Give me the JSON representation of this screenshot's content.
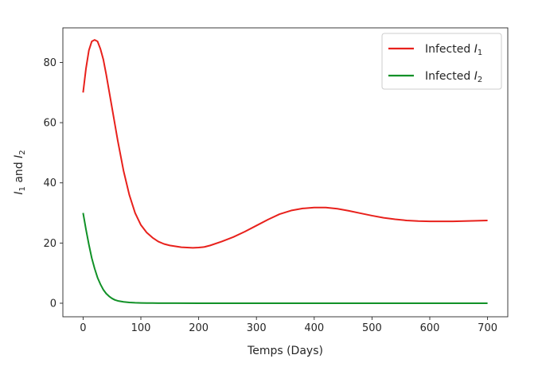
{
  "chart_data": {
    "type": "line",
    "title": "",
    "xlabel": "Temps (Days)",
    "ylabel_parts": [
      {
        "text": "I",
        "italic": true
      },
      {
        "text": "1",
        "sub": true
      },
      {
        "text": " and "
      },
      {
        "text": "I",
        "italic": true
      },
      {
        "text": "2",
        "sub": true
      }
    ],
    "xlim": [
      -35,
      735
    ],
    "ylim": [
      -4.5,
      91.5
    ],
    "xticks": [
      0,
      100,
      200,
      300,
      400,
      500,
      600,
      700
    ],
    "yticks": [
      0,
      20,
      40,
      60,
      80
    ],
    "grid": false,
    "legend_position": "top-right",
    "series": [
      {
        "legend_parts": [
          {
            "text": "Infected "
          },
          {
            "text": "I",
            "italic": true
          },
          {
            "text": "1",
            "sub": true
          }
        ],
        "color": "#e8211c",
        "x": [
          0,
          5,
          10,
          15,
          20,
          25,
          30,
          35,
          40,
          50,
          60,
          70,
          80,
          90,
          100,
          110,
          120,
          130,
          140,
          150,
          160,
          170,
          180,
          190,
          200,
          210,
          220,
          240,
          260,
          280,
          300,
          320,
          340,
          360,
          380,
          400,
          420,
          440,
          460,
          480,
          500,
          520,
          540,
          560,
          580,
          600,
          620,
          640,
          660,
          680,
          700
        ],
        "y": [
          70,
          78,
          84,
          87,
          87.5,
          87,
          84.5,
          81,
          76,
          65,
          54,
          44,
          36,
          30,
          26,
          23.5,
          21.8,
          20.5,
          19.7,
          19.2,
          18.9,
          18.6,
          18.5,
          18.4,
          18.5,
          18.7,
          19.2,
          20.5,
          22,
          23.8,
          25.8,
          27.8,
          29.6,
          30.8,
          31.5,
          31.8,
          31.8,
          31.4,
          30.7,
          29.9,
          29.1,
          28.4,
          27.9,
          27.5,
          27.3,
          27.2,
          27.2,
          27.2,
          27.3,
          27.4,
          27.5
        ]
      },
      {
        "legend_parts": [
          {
            "text": "Infected "
          },
          {
            "text": "I",
            "italic": true
          },
          {
            "text": "2",
            "sub": true
          }
        ],
        "color": "#119127",
        "x": [
          0,
          5,
          10,
          15,
          20,
          25,
          30,
          35,
          40,
          45,
          50,
          55,
          60,
          70,
          80,
          90,
          100,
          110,
          120,
          130,
          140,
          160,
          200,
          300,
          400,
          500,
          600,
          700
        ],
        "y": [
          30,
          24.5,
          19.5,
          15,
          11.5,
          8.5,
          6.3,
          4.5,
          3.2,
          2.3,
          1.6,
          1.1,
          0.8,
          0.45,
          0.25,
          0.15,
          0.1,
          0.07,
          0.05,
          0.04,
          0.03,
          0.02,
          0.01,
          0,
          0,
          0,
          0,
          0
        ]
      }
    ]
  }
}
